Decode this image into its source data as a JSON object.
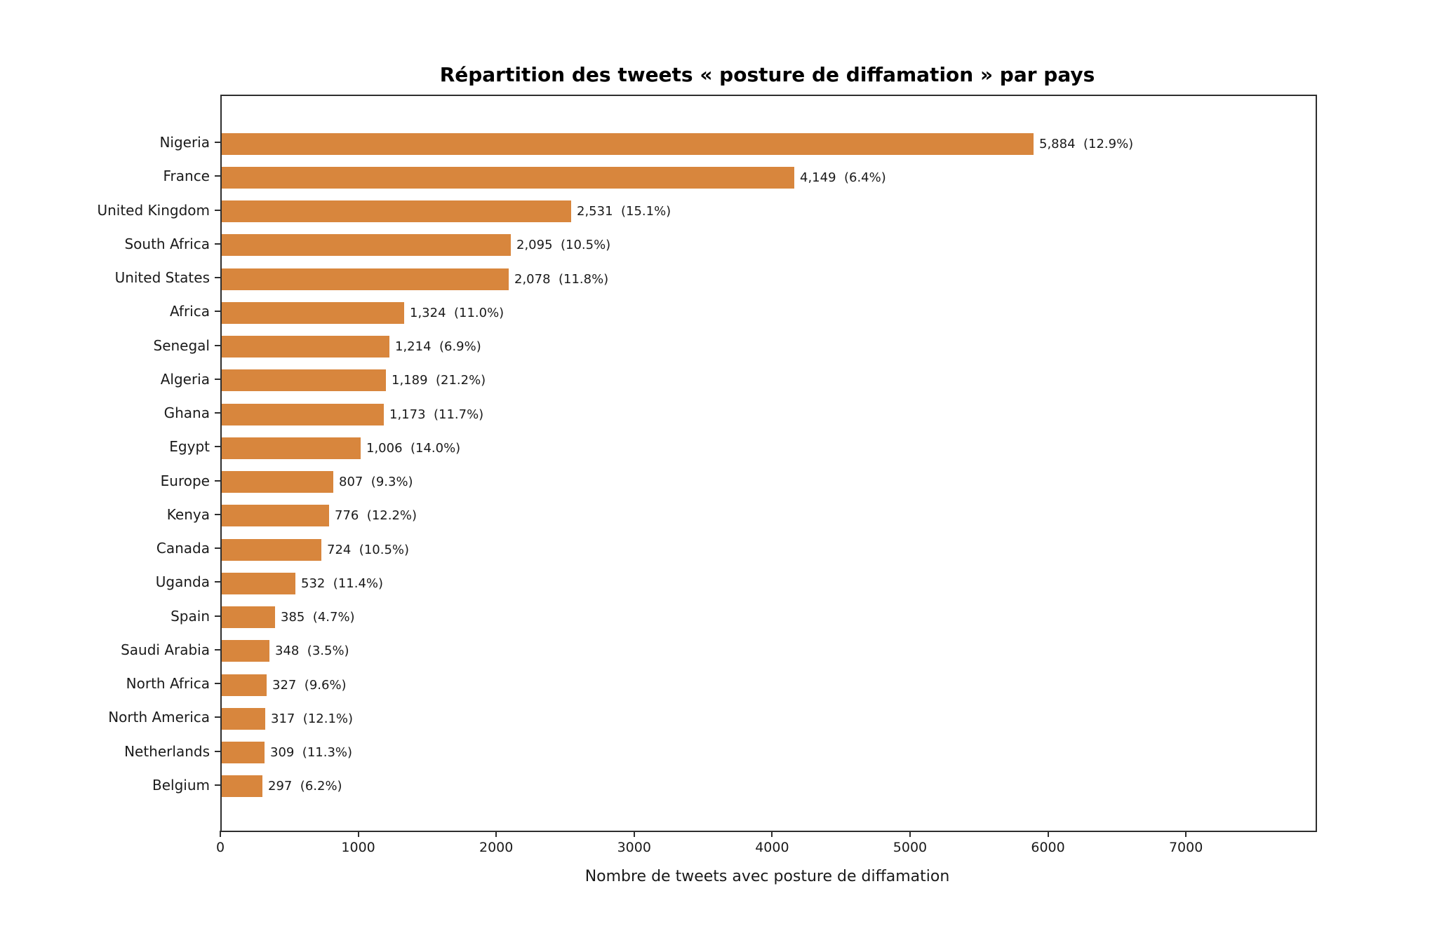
{
  "chart_data": {
    "type": "bar",
    "orientation": "horizontal",
    "title": "Répartition des tweets « posture de diffamation » par pays",
    "xlabel": "Nombre de tweets avec posture de diffamation",
    "ylabel": "",
    "categories": [
      "Nigeria",
      "France",
      "United Kingdom",
      "South Africa",
      "United States",
      "Africa",
      "Senegal",
      "Algeria",
      "Ghana",
      "Egypt",
      "Europe",
      "Kenya",
      "Canada",
      "Uganda",
      "Spain",
      "Saudi Arabia",
      "North Africa",
      "North America",
      "Netherlands",
      "Belgium"
    ],
    "values": [
      5884,
      4149,
      2531,
      2095,
      2078,
      1324,
      1214,
      1189,
      1173,
      1006,
      807,
      776,
      724,
      532,
      385,
      348,
      327,
      317,
      309,
      297
    ],
    "percents": [
      12.9,
      6.4,
      15.1,
      10.5,
      11.8,
      11.0,
      6.9,
      21.2,
      11.7,
      14.0,
      9.3,
      12.2,
      10.5,
      11.4,
      4.7,
      3.5,
      9.6,
      12.1,
      11.3,
      6.2
    ],
    "bar_labels": [
      "5,884  (12.9%)",
      "4,149  (6.4%)",
      "2,531  (15.1%)",
      "2,095  (10.5%)",
      "2,078  (11.8%)",
      "1,324  (11.0%)",
      "1,214  (6.9%)",
      "1,189  (21.2%)",
      "1,173  (11.7%)",
      "1,006  (14.0%)",
      "807  (9.3%)",
      "776  (12.2%)",
      "724  (10.5%)",
      "532  (11.4%)",
      "385  (4.7%)",
      "348  (3.5%)",
      "327  (9.6%)",
      "317  (12.1%)",
      "309  (11.3%)",
      "297  (6.2%)"
    ],
    "xlim": [
      0,
      7930
    ],
    "xticks": [
      0,
      1000,
      2000,
      3000,
      4000,
      5000,
      6000,
      7000
    ],
    "xtick_labels": [
      "0",
      "1000",
      "2000",
      "3000",
      "4000",
      "5000",
      "6000",
      "7000"
    ],
    "grid": false,
    "legend": null,
    "bar_color": "#d8863d",
    "spine_color": "#2e2e2e",
    "text_color": "#1a1a1a",
    "background_color": "#ffffff"
  }
}
